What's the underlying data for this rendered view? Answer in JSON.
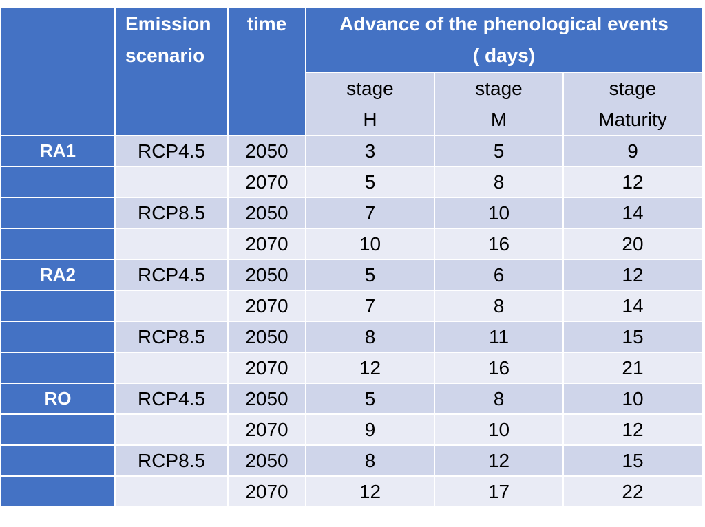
{
  "table": {
    "headers": {
      "emission_scenario": [
        "Emission",
        "scenario"
      ],
      "time": "time",
      "advance": [
        "Advance of the phenological events",
        "( days)"
      ],
      "stages": [
        [
          "stage",
          "H"
        ],
        [
          "stage",
          "M"
        ],
        [
          "stage",
          "Maturity"
        ]
      ]
    },
    "rows": [
      {
        "region": "RA1",
        "scenario": "RCP4.5",
        "time": "2050",
        "h": "3",
        "m": "5",
        "maturity": "9"
      },
      {
        "region": "",
        "scenario": "",
        "time": "2070",
        "h": "5",
        "m": "8",
        "maturity": "12"
      },
      {
        "region": "",
        "scenario": "RCP8.5",
        "time": "2050",
        "h": "7",
        "m": "10",
        "maturity": "14"
      },
      {
        "region": "",
        "scenario": "",
        "time": "2070",
        "h": "10",
        "m": "16",
        "maturity": "20"
      },
      {
        "region": "RA2",
        "scenario": "RCP4.5",
        "time": "2050",
        "h": "5",
        "m": "6",
        "maturity": "12"
      },
      {
        "region": "",
        "scenario": "",
        "time": "2070",
        "h": "7",
        "m": "8",
        "maturity": "14"
      },
      {
        "region": "",
        "scenario": "RCP8.5",
        "time": "2050",
        "h": "8",
        "m": "11",
        "maturity": "15"
      },
      {
        "region": "",
        "scenario": "",
        "time": "2070",
        "h": "12",
        "m": "16",
        "maturity": "21"
      },
      {
        "region": "RO",
        "scenario": "RCP4.5",
        "time": "2050",
        "h": "5",
        "m": "8",
        "maturity": "10"
      },
      {
        "region": "",
        "scenario": "",
        "time": "2070",
        "h": "9",
        "m": "10",
        "maturity": "12"
      },
      {
        "region": "",
        "scenario": "RCP8.5",
        "time": "2050",
        "h": "8",
        "m": "12",
        "maturity": "15"
      },
      {
        "region": "",
        "scenario": "",
        "time": "2070",
        "h": "12",
        "m": "17",
        "maturity": "22"
      }
    ]
  },
  "colors": {
    "header_blue": "#4472c4",
    "row_dark": "#cfd5ea",
    "row_light": "#e9ebf5"
  }
}
